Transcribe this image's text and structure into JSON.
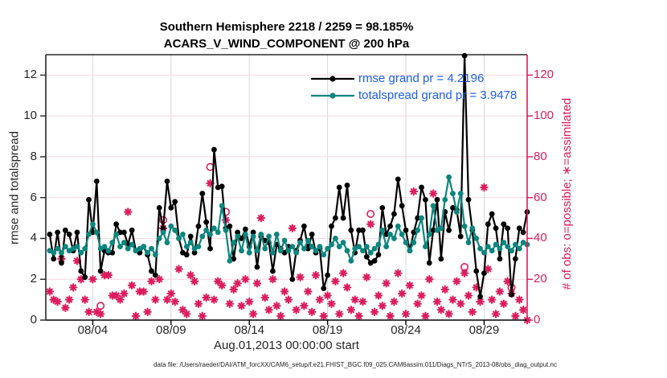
{
  "title": {
    "line1": "Southern Hemisphere 2218 / 2259 = 98.185%",
    "line2": "ACARS_V_WIND_COMPONENT @ 200 hPa"
  },
  "legend": [
    {
      "label": "rmse grand pr = 4.2196",
      "color": "#000000"
    },
    {
      "label": "totalspread grand pr = 3.9478",
      "color": "#0d867d"
    }
  ],
  "axes": {
    "left": {
      "label": "rmse and totalspread"
    },
    "right": {
      "label": "# of obs: o=possible; ∗=assimilated"
    },
    "x": {
      "label": "Aug.01,2013 00:00:00 start"
    }
  },
  "footer": {
    "text": "data file: /Users/raeder/DAI/ATM_forcXX/CAM6_setup/f.e21.FHIST_BGC.f09_025.CAM6assim.011/Diags_NTrS_2013-08/obs_diag_output.nc"
  },
  "chart_data": {
    "type": "line",
    "title": "Southern Hemisphere 2218 / 2259 = 98.185%",
    "subtitle": "ACARS_V_WIND_COMPONENT @ 200 hPa",
    "xlabel": "Aug.01,2013 00:00:00 start",
    "ylabel_left": "rmse and totalspread",
    "ylabel_right": "# of obs: o=possible; *=assimilated",
    "grid": true,
    "legend_position": "upper-right-inside",
    "x_start_day": 0.25,
    "x_step_day": 0.25,
    "xlim_days": [
      0,
      30.75
    ],
    "ylim_left": [
      0,
      13
    ],
    "ylim_right": [
      0,
      130
    ],
    "xticks": [
      {
        "day": 3,
        "label": "08/04"
      },
      {
        "day": 8,
        "label": "08/09"
      },
      {
        "day": 13,
        "label": "08/14"
      },
      {
        "day": 18,
        "label": "08/19"
      },
      {
        "day": 23,
        "label": "08/24"
      },
      {
        "day": 28,
        "label": "08/29"
      }
    ],
    "yticks_left": [
      0,
      2,
      4,
      6,
      8,
      10,
      12
    ],
    "yticks_right": [
      0,
      20,
      40,
      60,
      80,
      100,
      120
    ],
    "colors": {
      "rmse": "#000000",
      "totalspread": "#0d867d",
      "obs": "#dc1c5e",
      "legend_text": "#1e5ef0",
      "grid_h": "#f7d8e0",
      "grid_v": "#d7d7d7",
      "axis_dark": "#262626"
    },
    "series": [
      {
        "name": "rmse",
        "axis": "left",
        "marker": "dot",
        "grand_pr": 4.2196,
        "values": [
          4.2,
          3.0,
          4.3,
          2.8,
          4.4,
          4.2,
          3.4,
          4.3,
          2.4,
          2.1,
          5.9,
          4.3,
          6.8,
          2.4,
          3.4,
          3.3,
          3.3,
          4.7,
          4.3,
          4.3,
          3.7,
          4.4,
          3.4,
          3.3,
          3.6,
          3.2,
          2.4,
          2.2,
          5.5,
          4.5,
          6.8,
          5.5,
          5.8,
          4.0,
          3.3,
          3.2,
          4.1,
          3.3,
          4.6,
          6.2,
          4.8,
          3.5,
          8.35,
          6.5,
          6.55,
          4.5,
          4.6,
          3.0,
          4.3,
          4.0,
          4.45,
          3.6,
          4.3,
          2.6,
          4.1,
          3.9,
          3.8,
          2.4,
          3.7,
          3.5,
          3.3,
          3.6,
          2.0,
          3.4,
          3.9,
          4.6,
          3.5,
          4.2,
          3.3,
          3.5,
          1.55,
          2.2,
          4.6,
          5.0,
          6.5,
          5.0,
          6.6,
          4.4,
          3.3,
          4.4,
          4.4,
          3.1,
          2.8,
          2.9,
          3.2,
          5.5,
          4.2,
          4.6,
          5.2,
          6.9,
          5.6,
          4.4,
          3.4,
          4.3,
          5.0,
          6.5,
          5.9,
          2.8,
          4.4,
          5.9,
          3.0,
          5.3,
          4.4,
          5.5,
          5.4,
          4.1,
          12.95,
          5.9,
          4.4,
          2.4,
          1.15,
          2.3,
          4.7,
          5.2,
          4.5,
          3.0,
          4.7,
          4.5,
          1.25,
          3.0,
          4.5,
          4.3,
          5.3
        ]
      },
      {
        "name": "totalspread",
        "axis": "left",
        "marker": "dot",
        "grand_pr": 3.9478,
        "values": [
          3.4,
          3.3,
          3.5,
          3.3,
          3.6,
          3.4,
          3.5,
          3.6,
          3.3,
          3.5,
          4.2,
          4.7,
          4.3,
          3.5,
          3.6,
          3.4,
          3.8,
          4.2,
          3.6,
          3.8,
          3.5,
          3.7,
          3.4,
          3.5,
          3.6,
          3.3,
          3.5,
          3.2,
          4.0,
          4.3,
          3.8,
          4.6,
          4.4,
          4.0,
          4.2,
          3.6,
          3.8,
          3.5,
          3.6,
          4.1,
          4.4,
          4.2,
          4.5,
          4.3,
          5.6,
          4.4,
          2.9,
          3.8,
          4.1,
          3.4,
          4.2,
          3.3,
          4.1,
          3.4,
          4.2,
          3.5,
          4.1,
          3.3,
          4.2,
          3.4,
          3.9,
          3.4,
          3.6,
          3.3,
          3.8,
          3.5,
          3.9,
          3.6,
          3.4,
          3.6,
          3.2,
          3.5,
          3.7,
          4.0,
          3.6,
          3.8,
          3.4,
          2.9,
          3.5,
          3.6,
          3.4,
          3.6,
          3.3,
          3.5,
          3.7,
          4.4,
          3.6,
          4.2,
          4.0,
          4.6,
          4.2,
          3.8,
          3.4,
          3.8,
          4.4,
          5.0,
          3.6,
          4.2,
          5.6,
          4.4,
          4.5,
          5.9,
          7.0,
          6.2,
          5.3,
          6.2,
          4.6,
          3.8,
          4.5,
          4.0,
          3.5,
          3.3,
          3.6,
          3.4,
          3.7,
          3.5,
          3.8,
          3.6,
          3.4,
          3.7,
          3.5,
          3.8,
          3.7
        ]
      },
      {
        "name": "possible",
        "axis": "right",
        "marker": "o",
        "values": [
          14,
          10,
          9,
          30,
          6,
          10,
          16,
          29,
          20,
          10,
          4,
          20,
          4,
          7,
          22,
          22,
          12,
          12,
          10,
          13,
          53,
          17,
          2,
          14,
          14,
          4,
          19,
          10,
          20,
          49,
          10,
          13,
          9,
          25,
          5,
          3,
          22,
          19,
          8,
          2,
          11,
          75,
          10,
          19,
          17,
          53,
          8,
          15,
          18,
          7,
          20,
          9,
          3,
          18,
          50,
          11,
          5,
          20,
          7,
          2,
          14,
          10,
          45,
          5,
          21,
          7,
          14,
          4,
          22,
          10,
          2,
          12,
          8,
          19,
          3,
          23,
          16,
          5,
          10,
          2,
          9,
          21,
          52,
          4,
          12,
          7,
          18,
          2,
          9,
          23,
          13,
          3,
          17,
          63,
          8,
          12,
          2,
          20,
          62,
          9,
          5,
          15,
          3,
          10,
          19,
          8,
          26,
          12,
          4,
          16,
          9,
          65,
          25,
          10,
          3,
          14,
          8,
          19,
          16,
          2,
          10,
          5,
          0
        ]
      },
      {
        "name": "assimilated",
        "axis": "right",
        "marker": "*",
        "values": [
          14,
          10,
          9,
          30,
          6,
          10,
          16,
          29,
          20,
          10,
          4,
          20,
          4,
          3,
          22,
          22,
          12,
          12,
          10,
          13,
          53,
          17,
          2,
          14,
          14,
          4,
          19,
          10,
          20,
          45,
          10,
          13,
          9,
          25,
          5,
          3,
          22,
          19,
          8,
          2,
          11,
          67,
          10,
          19,
          17,
          49,
          8,
          15,
          18,
          7,
          20,
          9,
          3,
          18,
          50,
          11,
          5,
          20,
          7,
          2,
          14,
          10,
          45,
          5,
          21,
          7,
          14,
          4,
          22,
          10,
          2,
          12,
          8,
          19,
          3,
          23,
          16,
          5,
          10,
          2,
          9,
          21,
          47,
          4,
          12,
          7,
          18,
          2,
          9,
          23,
          13,
          3,
          17,
          63,
          8,
          12,
          2,
          20,
          62,
          9,
          5,
          15,
          3,
          10,
          19,
          8,
          23,
          12,
          4,
          16,
          9,
          65,
          25,
          10,
          3,
          14,
          8,
          19,
          13,
          2,
          10,
          5,
          0
        ]
      }
    ]
  }
}
